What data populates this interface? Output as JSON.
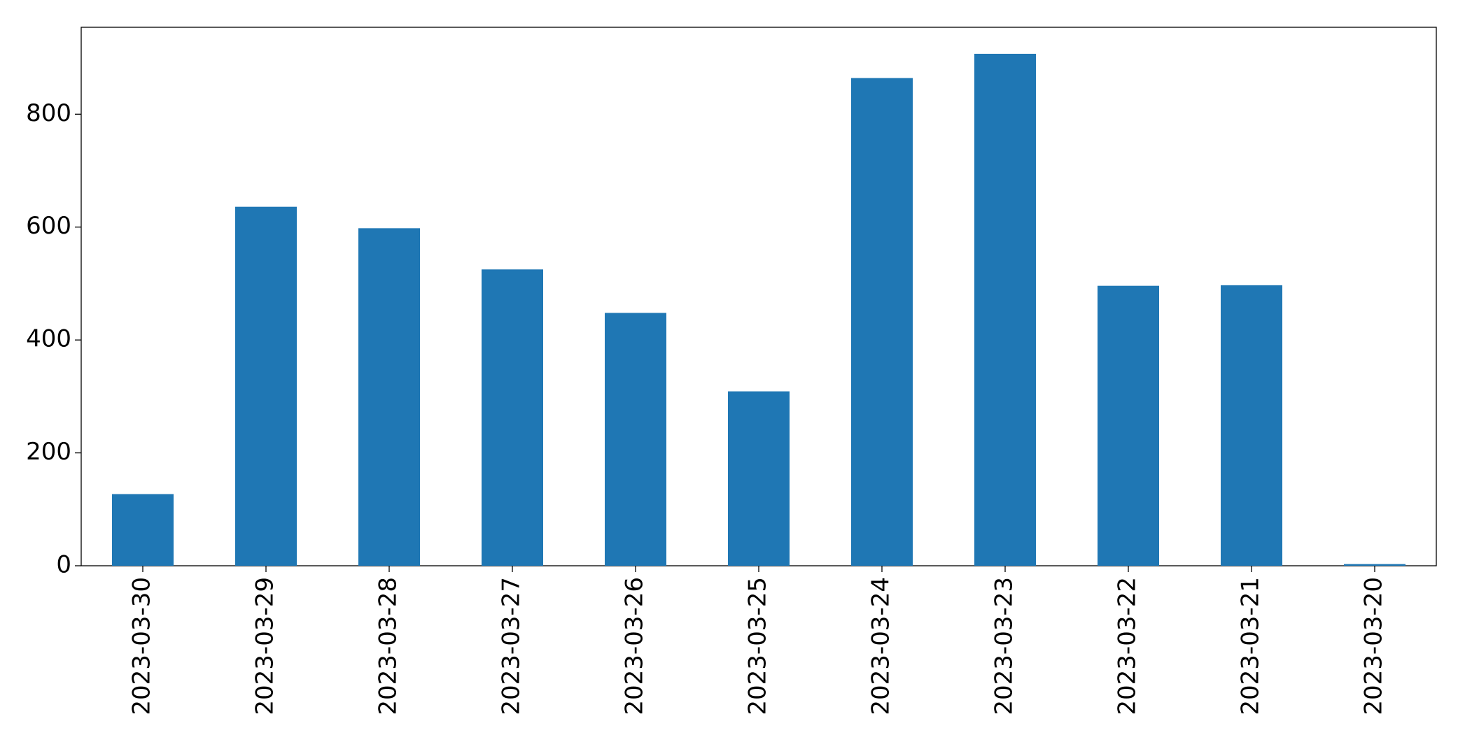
{
  "chart_data": {
    "type": "bar",
    "categories": [
      "2023-03-30",
      "2023-03-29",
      "2023-03-28",
      "2023-03-27",
      "2023-03-26",
      "2023-03-25",
      "2023-03-24",
      "2023-03-23",
      "2023-03-22",
      "2023-03-21",
      "2023-03-20"
    ],
    "values": [
      127,
      636,
      598,
      525,
      448,
      309,
      864,
      907,
      496,
      497,
      3
    ],
    "color": "#1f77b4",
    "ylim": [
      0,
      954
    ],
    "yticks": [
      0,
      200,
      400,
      600,
      800
    ],
    "grid": false
  }
}
